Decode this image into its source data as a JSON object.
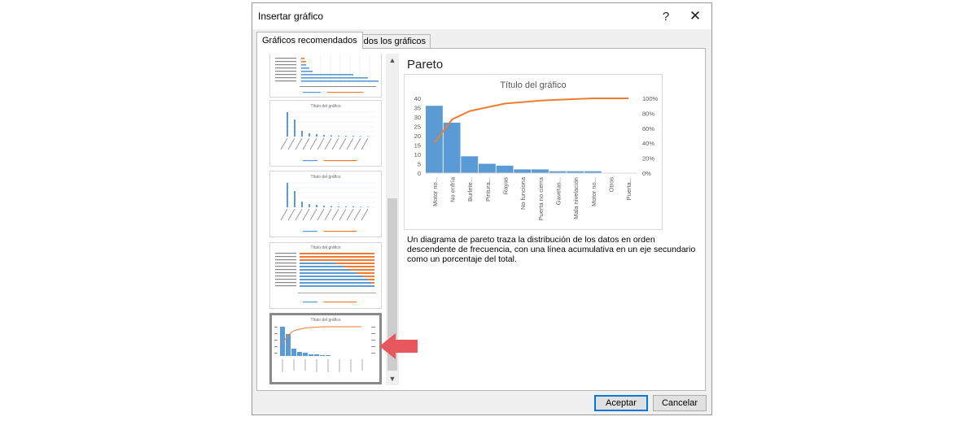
{
  "window": {
    "title": "Insertar gráfico",
    "help_label": "?",
    "close_label": "✕"
  },
  "tabs": [
    {
      "label": "Gráficos recomendados",
      "active": true
    },
    {
      "label": "Todos los gráficos",
      "active": false
    }
  ],
  "thumbnails": {
    "chart_title": "Título del gráfico",
    "legend_frequency": "Frecuencia",
    "legend_cumulative": "Frecuencia relativa acumulada (%)"
  },
  "preview": {
    "heading": "Pareto",
    "description": "Un diagrama de pareto traza la distribución de los datos en orden descendente de frecuencia, con una línea acumulativa en un eje secundario como un porcentaje del total."
  },
  "chart_data": {
    "type": "bar",
    "title": "Título del gráfico",
    "categories": [
      "Motor no...",
      "No enfría",
      "Burlete...",
      "Pintura...",
      "Rayas",
      "No funciona",
      "Puerta no cierra",
      "Gavetas...",
      "Mala nivelación",
      "Motor no...",
      "Otros",
      "Puerta..."
    ],
    "series": [
      {
        "type": "bar",
        "values": [
          36,
          27,
          9,
          5,
          4,
          2,
          2,
          1,
          1,
          1,
          0,
          0
        ],
        "color": "#5b9bd5"
      },
      {
        "type": "line",
        "axis": "secondary",
        "values": [
          0.41,
          0.72,
          0.83,
          0.88,
          0.93,
          0.95,
          0.97,
          0.98,
          0.99,
          1.0,
          1.0,
          1.0
        ],
        "color": "#ed7d31"
      }
    ],
    "ylim": [
      0,
      40
    ],
    "yticks": [
      "40",
      "35",
      "30",
      "25",
      "20",
      "15",
      "10",
      "5",
      "0"
    ],
    "y2lim": [
      0,
      1
    ],
    "y2ticks": [
      "100%",
      "80%",
      "60%",
      "40%",
      "20%",
      "0%"
    ],
    "grid": false
  },
  "buttons": {
    "accept": "Aceptar",
    "cancel": "Cancelar"
  },
  "colors": {
    "bar": "#5b9bd5",
    "line": "#ed7d31",
    "arrow": "#e8575e"
  }
}
